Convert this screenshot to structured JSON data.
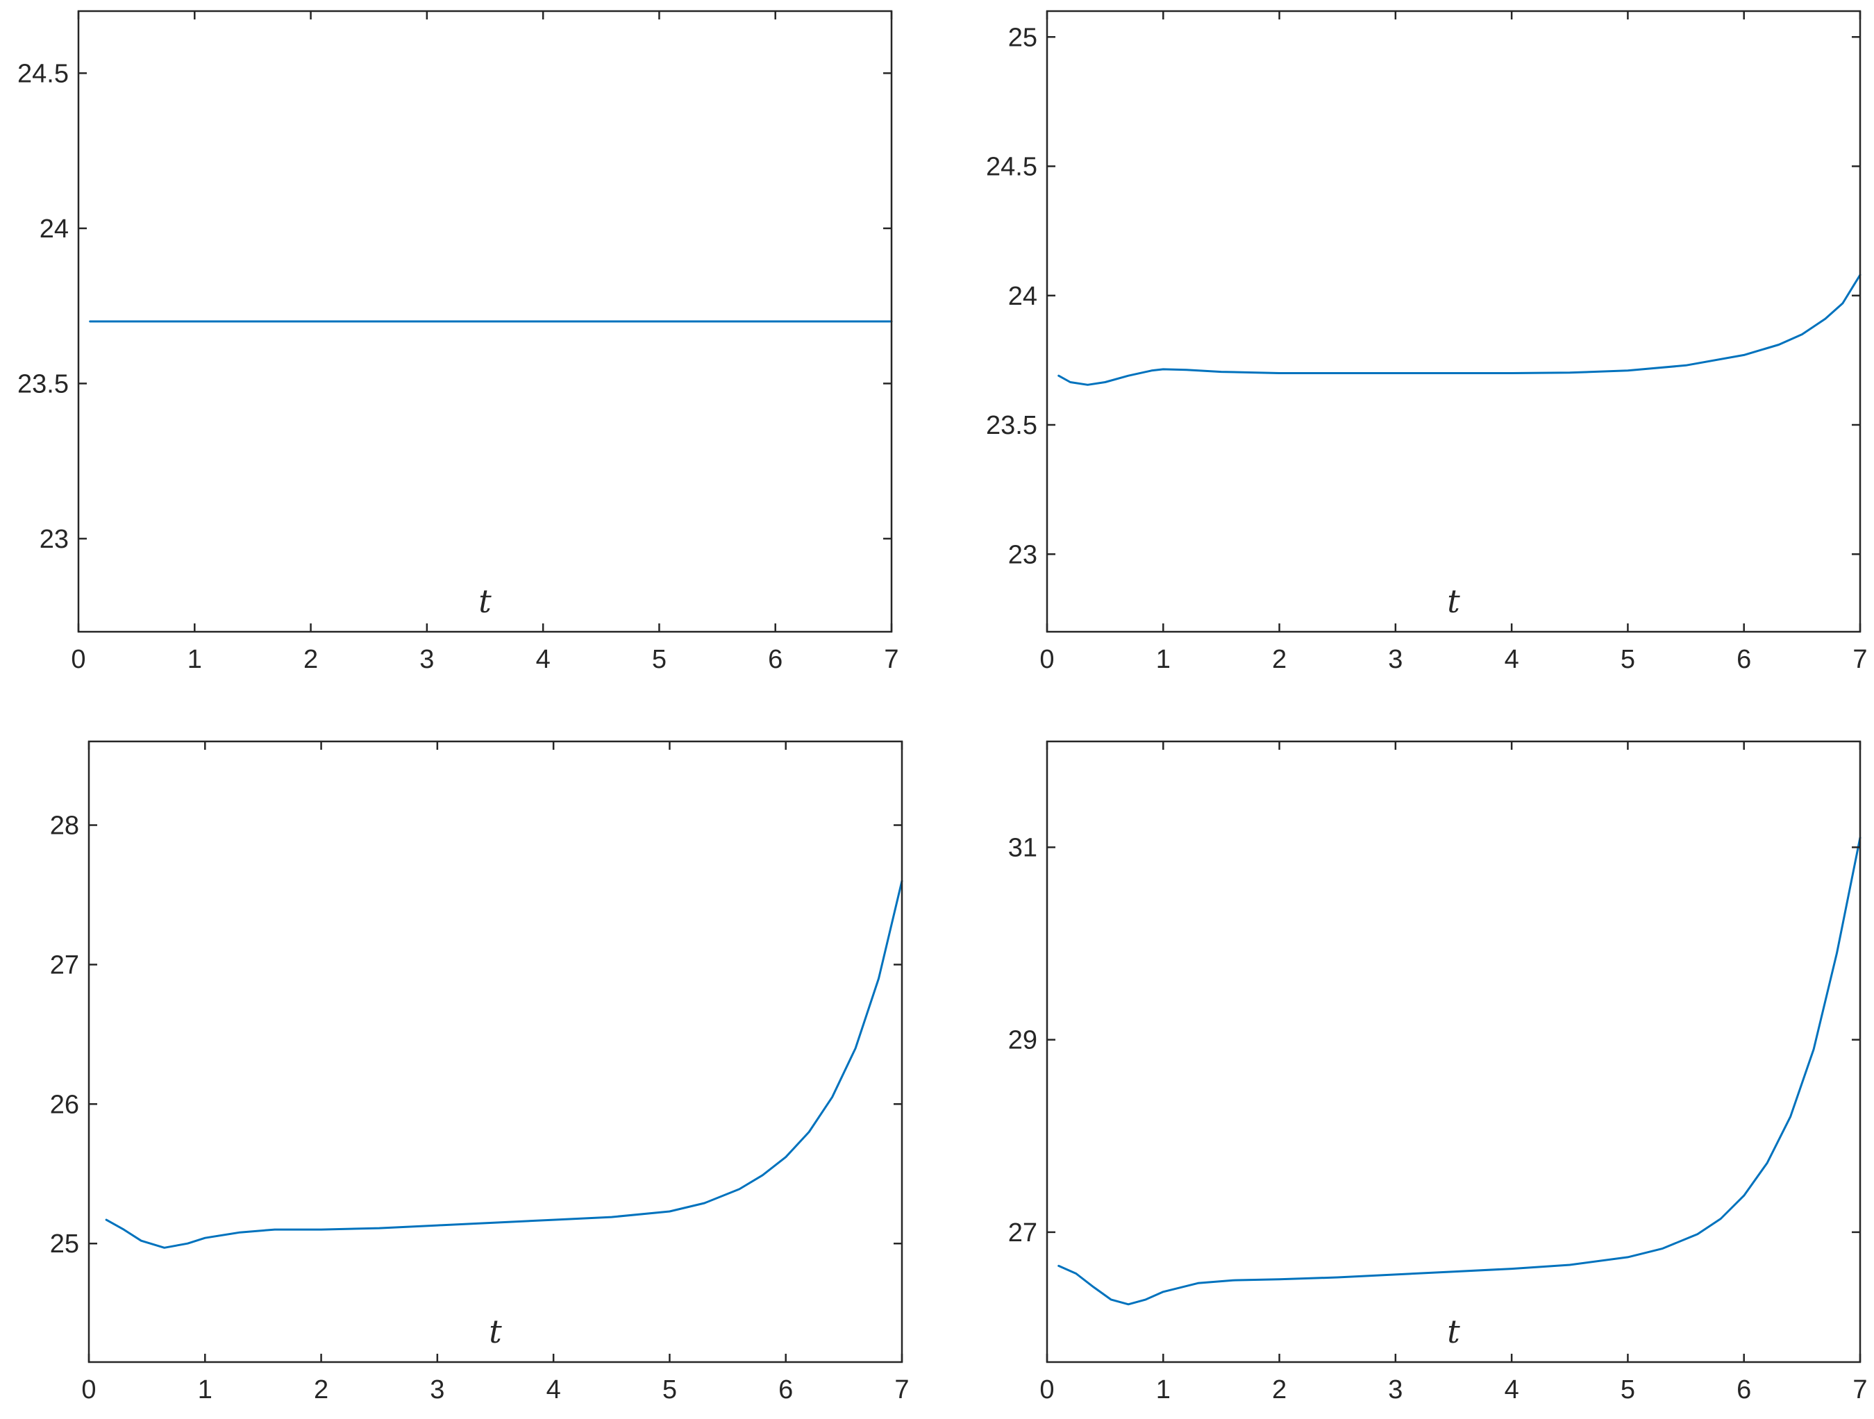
{
  "chart_data": [
    {
      "type": "line",
      "title": "",
      "xlabel": "t",
      "ylabel": "",
      "xlim": [
        0,
        7
      ],
      "ylim": [
        22.7,
        24.7
      ],
      "xticks": [
        0,
        1,
        2,
        3,
        4,
        5,
        6,
        7
      ],
      "xtick_labels": [
        "0",
        "1",
        "2",
        "3",
        "4",
        "5",
        "6",
        "7"
      ],
      "yticks": [
        23,
        23.5,
        24,
        24.5
      ],
      "ytick_labels": [
        "23",
        "23.5",
        "24",
        "24.5"
      ],
      "grid": false,
      "color": "#0072BD",
      "series": [
        {
          "x": [
            0.1,
            1,
            2,
            3,
            4,
            5,
            6,
            7
          ],
          "y": [
            23.7,
            23.7,
            23.7,
            23.7,
            23.7,
            23.7,
            23.7,
            23.7
          ]
        }
      ]
    },
    {
      "type": "line",
      "title": "",
      "xlabel": "t",
      "ylabel": "",
      "xlim": [
        0,
        7
      ],
      "ylim": [
        22.7,
        25.1
      ],
      "xticks": [
        0,
        1,
        2,
        3,
        4,
        5,
        6,
        7
      ],
      "xtick_labels": [
        "0",
        "1",
        "2",
        "3",
        "4",
        "5",
        "6",
        "7"
      ],
      "yticks": [
        23,
        23.5,
        24,
        24.5,
        25
      ],
      "ytick_labels": [
        "23",
        "23.5",
        "24",
        "24.5",
        "25"
      ],
      "grid": false,
      "color": "#0072BD",
      "series": [
        {
          "x": [
            0.1,
            0.2,
            0.35,
            0.5,
            0.7,
            0.9,
            1.0,
            1.2,
            1.5,
            2.0,
            2.5,
            3.0,
            3.5,
            4.0,
            4.5,
            5.0,
            5.5,
            6.0,
            6.3,
            6.5,
            6.7,
            6.85,
            7.0
          ],
          "y": [
            23.69,
            23.665,
            23.655,
            23.665,
            23.69,
            23.71,
            23.715,
            23.713,
            23.705,
            23.7,
            23.7,
            23.7,
            23.7,
            23.7,
            23.702,
            23.71,
            23.73,
            23.77,
            23.81,
            23.85,
            23.91,
            23.97,
            24.08
          ]
        }
      ]
    },
    {
      "type": "line",
      "title": "",
      "xlabel": "t",
      "ylabel": "",
      "xlim": [
        0,
        7
      ],
      "ylim": [
        24.15,
        28.6
      ],
      "xticks": [
        0,
        1,
        2,
        3,
        4,
        5,
        6,
        7
      ],
      "xtick_labels": [
        "0",
        "1",
        "2",
        "3",
        "4",
        "5",
        "6",
        "7"
      ],
      "yticks": [
        25,
        26,
        27,
        28
      ],
      "ytick_labels": [
        "25",
        "26",
        "27",
        "28"
      ],
      "grid": false,
      "color": "#0072BD",
      "series": [
        {
          "x": [
            0.15,
            0.3,
            0.45,
            0.65,
            0.85,
            1.0,
            1.3,
            1.6,
            2.0,
            2.5,
            3.0,
            3.5,
            4.0,
            4.5,
            5.0,
            5.3,
            5.6,
            5.8,
            6.0,
            6.2,
            6.4,
            6.6,
            6.8,
            7.0
          ],
          "y": [
            25.17,
            25.1,
            25.02,
            24.97,
            25.0,
            25.04,
            25.08,
            25.1,
            25.1,
            25.11,
            25.13,
            25.15,
            25.17,
            25.19,
            25.23,
            25.29,
            25.39,
            25.49,
            25.62,
            25.8,
            26.05,
            26.4,
            26.9,
            27.6
          ]
        }
      ]
    },
    {
      "type": "line",
      "title": "",
      "xlabel": "t",
      "ylabel": "",
      "xlim": [
        0,
        7
      ],
      "ylim": [
        25.65,
        32.1
      ],
      "xticks": [
        0,
        1,
        2,
        3,
        4,
        5,
        6,
        7
      ],
      "xtick_labels": [
        "0",
        "1",
        "2",
        "3",
        "4",
        "5",
        "6",
        "7"
      ],
      "yticks": [
        27,
        29,
        31
      ],
      "ytick_labels": [
        "27",
        "29",
        "31"
      ],
      "grid": false,
      "color": "#0072BD",
      "series": [
        {
          "x": [
            0.1,
            0.25,
            0.4,
            0.55,
            0.7,
            0.85,
            1.0,
            1.3,
            1.6,
            2.0,
            2.5,
            3.0,
            3.5,
            4.0,
            4.5,
            5.0,
            5.3,
            5.6,
            5.8,
            6.0,
            6.2,
            6.4,
            6.6,
            6.8,
            7.0
          ],
          "y": [
            26.65,
            26.57,
            26.43,
            26.3,
            26.25,
            26.3,
            26.38,
            26.47,
            26.5,
            26.51,
            26.53,
            26.56,
            26.59,
            26.62,
            26.66,
            26.74,
            26.83,
            26.98,
            27.14,
            27.38,
            27.72,
            28.2,
            28.9,
            29.9,
            31.1
          ]
        }
      ]
    }
  ]
}
